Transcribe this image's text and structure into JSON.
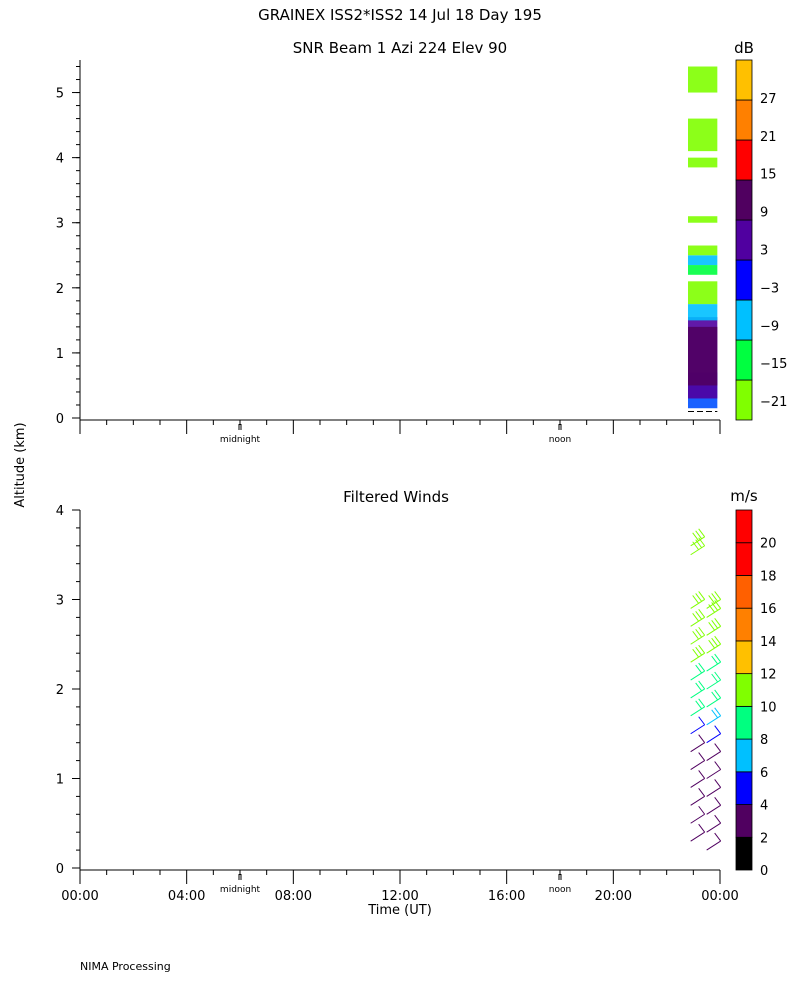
{
  "header": {
    "title": "GRAINEX ISS2*ISS2  14 Jul 18 Day 195",
    "footer": "NIMA Processing",
    "shared_ylabel": "Altitude (km)"
  },
  "chart_data": [
    {
      "type": "heatmap",
      "title": "SNR Beam 1 Azi 224 Elev 90",
      "ylabel": "Altitude (km)",
      "ylim": [
        0,
        5.5
      ],
      "yticks": [
        0,
        1,
        2,
        3,
        4,
        5
      ],
      "xlim": [
        0,
        24
      ],
      "day_markers": [
        {
          "x": 6,
          "label": "midnight"
        },
        {
          "x": 18,
          "label": "noon"
        }
      ],
      "colorbar": {
        "unit": "dB",
        "range": [
          -24,
          33
        ],
        "tick_labels": [
          "27",
          "21",
          "15",
          "9",
          "3",
          "−3",
          "−9",
          "−15",
          "−21"
        ],
        "tick_values": [
          27,
          21,
          15,
          9,
          3,
          -3,
          -9,
          -15,
          -21
        ],
        "colors": [
          "#80ff00",
          "#00ff40",
          "#00c0ff",
          "#0000ff",
          "#5000a0",
          "#500060",
          "#ff0000",
          "#ff8000",
          "#ffc000"
        ]
      },
      "data_time_range": [
        22.8,
        23.9
      ],
      "layers": [
        {
          "ymin": 0.15,
          "ymax": 0.7,
          "color": "#0050ff"
        },
        {
          "ymin": 0.3,
          "ymax": 1.55,
          "color": "#5000a0"
        },
        {
          "ymin": 0.5,
          "ymax": 1.4,
          "color": "#500060"
        },
        {
          "ymin": 1.5,
          "ymax": 1.75,
          "color": "#00c0ff"
        },
        {
          "ymin": 1.75,
          "ymax": 2.1,
          "color": "#80ff00"
        },
        {
          "ymin": 2.2,
          "ymax": 2.35,
          "color": "#00ff40"
        },
        {
          "ymin": 2.35,
          "ymax": 2.5,
          "color": "#00c0ff"
        },
        {
          "ymin": 2.5,
          "ymax": 2.65,
          "color": "#80ff00"
        },
        {
          "ymin": 3.0,
          "ymax": 3.1,
          "color": "#80ff00"
        },
        {
          "ymin": 3.85,
          "ymax": 4.0,
          "color": "#80ff00"
        },
        {
          "ymin": 4.1,
          "ymax": 4.6,
          "color": "#80ff00"
        },
        {
          "ymin": 5.0,
          "ymax": 5.4,
          "color": "#80ff00"
        }
      ]
    },
    {
      "type": "barbs",
      "title": "Filtered Winds",
      "xlabel": "Time (UT)",
      "ylabel": "Altitude (km)",
      "ylim": [
        0,
        4
      ],
      "yticks": [
        0,
        1,
        2,
        3,
        4
      ],
      "xlim": [
        0,
        24
      ],
      "xtick_labels": [
        "00:00",
        "04:00",
        "08:00",
        "12:00",
        "16:00",
        "20:00",
        "00:00"
      ],
      "xtick_values": [
        0,
        4,
        8,
        12,
        16,
        20,
        24
      ],
      "day_markers": [
        {
          "x": 6,
          "label": "midnight"
        },
        {
          "x": 18,
          "label": "noon"
        }
      ],
      "colorbar": {
        "unit": "m/s",
        "range": [
          0,
          22
        ],
        "tick_labels": [
          "20",
          "18",
          "16",
          "14",
          "12",
          "10",
          "8",
          "6",
          "4",
          "2",
          "0"
        ],
        "tick_values": [
          20,
          18,
          16,
          14,
          12,
          10,
          8,
          6,
          4,
          2,
          0
        ],
        "colors": [
          "#000000",
          "#500060",
          "#0000ff",
          "#00c0ff",
          "#00ff80",
          "#80ff00",
          "#ffc000",
          "#ff8000",
          "#ff6000",
          "#ff0000",
          "#ff0000"
        ]
      },
      "profiles": [
        {
          "time": 22.9,
          "altitudes": [
            0.3,
            0.5,
            0.7,
            0.9,
            1.1,
            1.3,
            1.5,
            1.7,
            1.9,
            2.1,
            2.3,
            2.5,
            2.7,
            2.9,
            3.5,
            3.6
          ],
          "speeds": [
            2,
            2,
            2,
            2,
            2,
            3,
            5,
            8,
            9,
            9,
            10,
            10,
            11,
            11,
            11,
            11
          ]
        },
        {
          "time": 23.5,
          "altitudes": [
            0.2,
            0.4,
            0.6,
            0.8,
            1.0,
            1.2,
            1.4,
            1.6,
            1.8,
            2.0,
            2.2,
            2.4,
            2.6,
            2.8,
            2.9
          ],
          "speeds": [
            2,
            2,
            2,
            2,
            2,
            3,
            4,
            6,
            8,
            9,
            9,
            10,
            10,
            11,
            11
          ]
        }
      ]
    }
  ]
}
